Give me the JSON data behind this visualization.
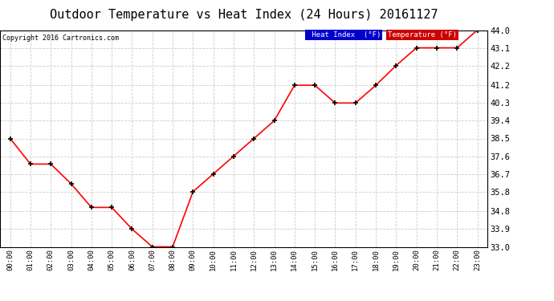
{
  "title": "Outdoor Temperature vs Heat Index (24 Hours) 20161127",
  "copyright": "Copyright 2016 Cartronics.com",
  "x_labels": [
    "00:00",
    "01:00",
    "02:00",
    "03:00",
    "04:00",
    "05:00",
    "06:00",
    "07:00",
    "08:00",
    "09:00",
    "10:00",
    "11:00",
    "12:00",
    "13:00",
    "14:00",
    "15:00",
    "16:00",
    "17:00",
    "18:00",
    "19:00",
    "20:00",
    "21:00",
    "22:00",
    "23:00"
  ],
  "temperature": [
    38.5,
    37.2,
    37.2,
    36.2,
    35.0,
    35.0,
    33.9,
    33.0,
    33.0,
    35.8,
    36.7,
    37.6,
    38.5,
    39.4,
    41.2,
    41.2,
    40.3,
    40.3,
    41.2,
    42.2,
    43.1,
    43.1,
    43.1,
    44.0
  ],
  "ylim": [
    33.0,
    44.0
  ],
  "yticks": [
    33.0,
    33.9,
    34.8,
    35.8,
    36.7,
    37.6,
    38.5,
    39.4,
    40.3,
    41.2,
    42.2,
    43.1,
    44.0
  ],
  "temp_color": "#ff0000",
  "background_color": "#ffffff",
  "grid_color": "#cccccc",
  "title_fontsize": 11,
  "legend_heat_bg": "#0000cc",
  "legend_temp_bg": "#cc0000",
  "fig_width": 6.9,
  "fig_height": 3.75,
  "dpi": 100
}
